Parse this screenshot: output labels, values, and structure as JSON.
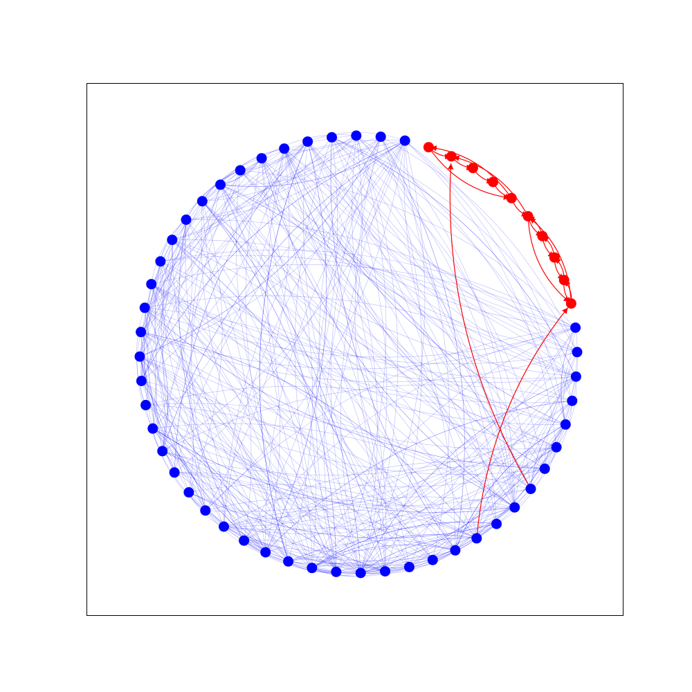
{
  "graph": {
    "type": "directed-network-circular-layout",
    "node_count": 56,
    "communities": [
      {
        "name": "",
        "color": "#0000ff",
        "nodes": [
          0,
          1,
          2,
          3,
          4,
          5,
          6,
          7,
          8,
          9,
          10,
          11,
          12,
          13,
          14,
          15,
          15,
          16,
          17,
          18,
          19,
          20,
          21,
          22,
          23,
          24,
          25,
          26,
          27,
          28,
          29,
          30,
          31,
          32,
          33,
          34,
          35,
          36,
          37,
          38,
          39,
          40,
          41,
          42,
          43,
          44,
          45
        ]
      },
      {
        "name": "",
        "color": "#ff0000",
        "nodes": [
          46,
          47,
          48,
          49,
          50,
          51,
          52,
          53,
          54,
          55
        ]
      }
    ],
    "red_edges": [
      [
        7,
        47
      ],
      [
        10,
        55
      ],
      [
        46,
        47
      ],
      [
        47,
        48
      ],
      [
        48,
        49
      ],
      [
        49,
        50
      ],
      [
        50,
        51
      ],
      [
        51,
        47
      ],
      [
        46,
        50
      ],
      [
        50,
        46
      ],
      [
        51,
        52
      ],
      [
        52,
        53
      ],
      [
        53,
        54
      ],
      [
        54,
        55
      ],
      [
        55,
        51
      ],
      [
        51,
        55
      ],
      [
        55,
        54
      ],
      [
        54,
        53
      ],
      [
        53,
        52
      ],
      [
        52,
        51
      ]
    ],
    "blue_edge_count": 420,
    "edge_colors": {
      "intra_blue": "#0000ff",
      "intra_red": "#ff0000",
      "cross": "#ff0000"
    }
  }
}
